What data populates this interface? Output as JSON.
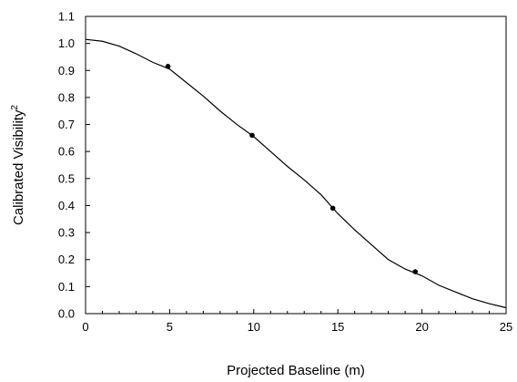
{
  "chart_data": {
    "type": "scatter",
    "xlabel": "Projected Baseline (m)",
    "ylabel_main": "Calibrated Visibility",
    "ylabel_superscript": "2",
    "xlim": [
      0,
      25
    ],
    "ylim": [
      0.0,
      1.1
    ],
    "xticks": [
      "0",
      "5",
      "10",
      "15",
      "20",
      "25"
    ],
    "yticks": [
      "0.0",
      "0.1",
      "0.2",
      "0.3",
      "0.4",
      "0.5",
      "0.6",
      "0.7",
      "0.8",
      "0.9",
      "1.0",
      "1.1"
    ],
    "grid": false,
    "legend": "none",
    "colors": {
      "line": "#000000",
      "points": "#000000"
    },
    "series": [
      {
        "kind": "points",
        "x": [
          4.9,
          9.9,
          14.7,
          19.6
        ],
        "y": [
          0.915,
          0.66,
          0.39,
          0.155
        ],
        "yerr": [
          0.008,
          0.008,
          0.008,
          0.006
        ]
      },
      {
        "kind": "line",
        "x": [
          0,
          1,
          2,
          3,
          4,
          5,
          6,
          7,
          8,
          9,
          10,
          11,
          12,
          13,
          14,
          15,
          16,
          17,
          18,
          19,
          20,
          21,
          22,
          23,
          24,
          25
        ],
        "y": [
          1.015,
          1.008,
          0.99,
          0.962,
          0.93,
          0.905,
          0.855,
          0.805,
          0.75,
          0.7,
          0.655,
          0.6,
          0.545,
          0.495,
          0.44,
          0.37,
          0.31,
          0.255,
          0.2,
          0.165,
          0.14,
          0.105,
          0.08,
          0.055,
          0.037,
          0.022
        ]
      }
    ]
  }
}
